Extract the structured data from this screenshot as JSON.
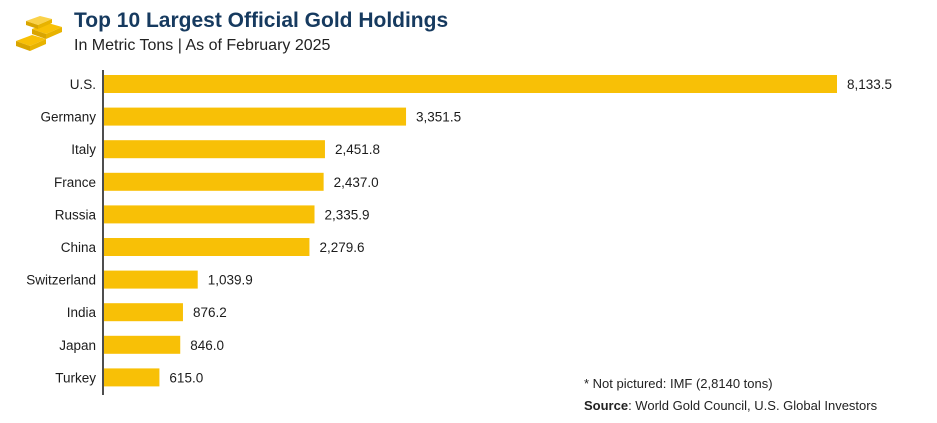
{
  "header": {
    "title": "Top 10 Largest Official Gold Holdings",
    "subtitle": "In Metric Tons | As of February 2025",
    "logo_icon": "gold-bars-icon"
  },
  "colors": {
    "bar": "#F8C006",
    "title": "#163A5F",
    "axis": "#222222",
    "text": "#1C1C1C"
  },
  "chart_data": {
    "type": "bar",
    "orientation": "horizontal",
    "categories": [
      "U.S.",
      "Germany",
      "Italy",
      "France",
      "Russia",
      "China",
      "Switzerland",
      "India",
      "Japan",
      "Turkey"
    ],
    "values": [
      8133.5,
      3351.5,
      2451.8,
      2437.0,
      2335.9,
      2279.6,
      1039.9,
      876.2,
      846.0,
      615.0
    ],
    "value_labels": [
      "8,133.5",
      "3,351.5",
      "2,451.8",
      "2,437.0",
      "2,335.9",
      "2,279.6",
      "1,039.9",
      "876.2",
      "846.0",
      "615.0"
    ],
    "grid": false,
    "legend": "none"
  },
  "notes": {
    "footnote": "* Not pictured: IMF (2,8140 tons)",
    "source_label": "Source",
    "source_text": ": World Gold Council, U.S. Global Investors"
  }
}
